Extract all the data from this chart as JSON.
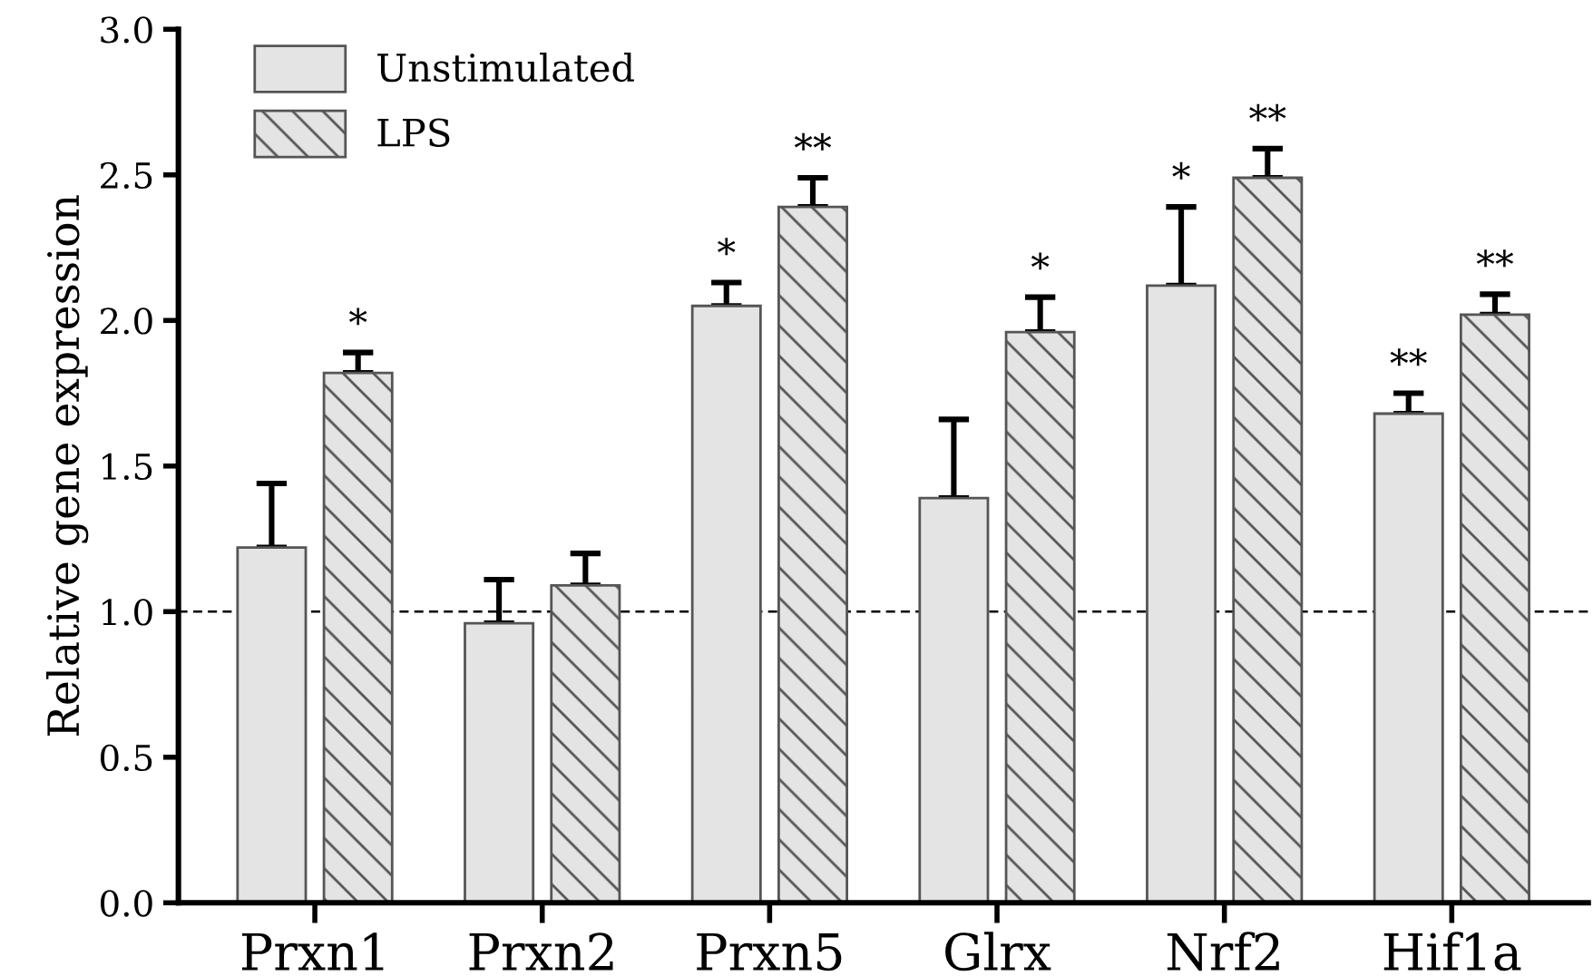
{
  "chart_data": {
    "type": "bar",
    "ylabel": "Relative gene expression",
    "categories": [
      "Prxn1",
      "Prxn2",
      "Prxn5",
      "Glrx",
      "Nrf2",
      "Hif1a"
    ],
    "series": [
      {
        "name": "Unstimulated",
        "color": "#e4e4e4",
        "values": [
          1.22,
          0.96,
          2.05,
          1.39,
          2.12,
          1.68
        ],
        "errors": [
          [
            1.22,
            1.44
          ],
          [
            0.96,
            1.11
          ],
          [
            2.05,
            2.13
          ],
          [
            1.39,
            1.66
          ],
          [
            2.12,
            2.39
          ],
          [
            1.68,
            1.75
          ]
        ],
        "value_labels": [
          null,
          null,
          "*",
          null,
          "*",
          "**"
        ]
      },
      {
        "name": "LPS",
        "color": "#e4e4e4",
        "values": [
          1.82,
          1.09,
          2.39,
          1.96,
          2.49,
          2.02
        ],
        "errors": [
          [
            1.82,
            1.89
          ],
          [
            1.09,
            1.2
          ],
          [
            2.39,
            2.49
          ],
          [
            1.96,
            2.08
          ],
          [
            2.49,
            2.59
          ],
          [
            2.02,
            2.09
          ]
        ],
        "value_labels": [
          "*",
          null,
          "**",
          "*",
          "**",
          "**"
        ]
      }
    ],
    "ylim": [
      0,
      3
    ],
    "yticks": [
      {
        "value": 0,
        "label": "0.0"
      },
      0.5,
      {
        "value": 1,
        "label": "1.0"
      },
      1.5,
      {
        "value": 2,
        "label": "2.0"
      },
      2.5,
      {
        "value": 3,
        "label": "3.0"
      }
    ],
    "ref_lines": [
      {
        "axis": "y",
        "value": 1,
        "label": null,
        "color": "#000000",
        "line_style": "dashed"
      }
    ],
    "legend": "top left",
    "grid": false
  }
}
